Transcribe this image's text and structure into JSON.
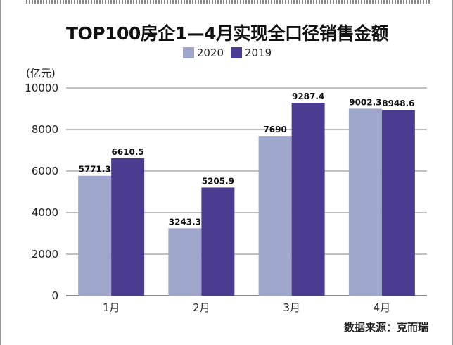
{
  "chart_data": {
    "type": "bar",
    "title": "TOP100房企1—4月实现全口径销售金额",
    "ylabel": "(亿元)",
    "source": "数据来源：克而瑞",
    "categories": [
      "1月",
      "2月",
      "3月",
      "4月"
    ],
    "series": [
      {
        "name": "2020",
        "color": "#a0a7cc",
        "values": [
          5771.3,
          3243.3,
          7690,
          9002.3
        ],
        "labels": [
          "5771.3",
          "3243.3",
          "7690",
          "9002.3"
        ]
      },
      {
        "name": "2019",
        "color": "#4b3b91",
        "values": [
          6610.5,
          5205.9,
          9287.4,
          8948.6
        ],
        "labels": [
          "6610.5",
          "5205.9",
          "9287.4",
          "8948.6"
        ]
      }
    ],
    "ylim": [
      0,
      10000
    ],
    "yticks": [
      "0",
      "2000",
      "4000",
      "6000",
      "8000",
      "10000"
    ],
    "grid": true,
    "legend": "top-center"
  }
}
